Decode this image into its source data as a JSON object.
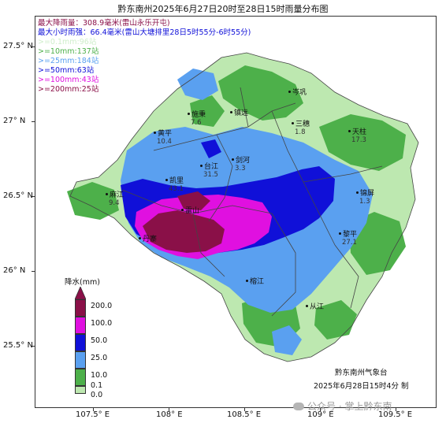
{
  "title": "黔东南州2025年6月27日20时至28日15时雨量分布图",
  "stats": {
    "max_rain": "最大降雨量：308.9毫米(雷山永乐开屯)",
    "max_hourly": "最大小时雨强：66.4毫米(雷山大塘排里28日5时55分-6时55分)",
    "lines": [
      {
        "text": ">=0.1mm:96站",
        "color": "#cfeecb"
      },
      {
        "text": ">=10mm:137站",
        "color": "#4db04a"
      },
      {
        "text": ">=25mm:184站",
        "color": "#5aa0f0"
      },
      {
        "text": ">=50mm:63站",
        "color": "#1010d8"
      },
      {
        "text": ">=100mm:43站",
        "color": "#e010e0"
      },
      {
        "text": ">=200mm:25站",
        "color": "#8a1048"
      }
    ]
  },
  "axes": {
    "y_ticks": [
      "27.5° N",
      "27° N",
      "26.5° N",
      "26° N",
      "25.5° N"
    ],
    "x_ticks": [
      "107.5° E",
      "108° E",
      "108.5° E",
      "109° E",
      "109.5° E"
    ]
  },
  "legend": {
    "title": "降水(mm)",
    "classes": [
      {
        "label": "200.0",
        "color": "#8a1048"
      },
      {
        "label": "100.0",
        "color": "#e010e0"
      },
      {
        "label": "50.0",
        "color": "#1010d8"
      },
      {
        "label": "25.0",
        "color": "#5aa0f0"
      },
      {
        "label": "10.0",
        "color": "#4db04a"
      },
      {
        "label": "0.1",
        "color": "#bde8b0"
      },
      {
        "label": "0.0",
        "color": "#ffffff"
      }
    ]
  },
  "cities": [
    {
      "name": "岑巩",
      "value": ""
    },
    {
      "name": "施秉",
      "value": "7.6"
    },
    {
      "name": "镇远",
      "value": ""
    },
    {
      "name": "黄平",
      "value": "10.4"
    },
    {
      "name": "三穗",
      "value": "1.8"
    },
    {
      "name": "天柱",
      "value": "17.3"
    },
    {
      "name": "剑河",
      "value": "3.3"
    },
    {
      "name": "台江",
      "value": "31.5"
    },
    {
      "name": "凯里",
      "value": "43.1"
    },
    {
      "name": "麻江",
      "value": "9.4"
    },
    {
      "name": "雷山",
      "value": ""
    },
    {
      "name": "丹寨",
      "value": ""
    },
    {
      "name": "锦屏",
      "value": "1.3"
    },
    {
      "name": "黎平",
      "value": "27.1"
    },
    {
      "name": "榕江",
      "value": ""
    },
    {
      "name": "从江",
      "value": ""
    }
  ],
  "issuer": "黔东南州气象台",
  "issued_time": "2025年6月28日15时4分  制",
  "watermark": "公众号 · 掌上黔东南"
}
